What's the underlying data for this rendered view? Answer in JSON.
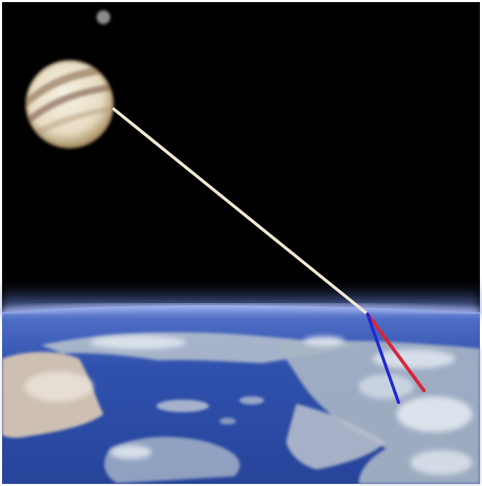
{
  "scene": {
    "background": "#000000",
    "frame_color": "#ffffff",
    "planet": {
      "name": "jupiter",
      "colors": {
        "light": "#f3ecd9",
        "band": "#8a6f5a",
        "limb": "#b49a6e"
      }
    },
    "moon": {
      "color": "#8c8c8c"
    },
    "earth": {
      "ocean": "#2e4fa8",
      "atmosphere": "#7e94de",
      "land": "#c9c3b8",
      "cloud": "#e8ecf2"
    },
    "rays": [
      {
        "name": "incoming-light-ray",
        "color": "#efe7d2"
      },
      {
        "name": "refracted-red-ray",
        "color": "#d8263a"
      },
      {
        "name": "refracted-blue-ray",
        "color": "#2028d6"
      }
    ]
  }
}
